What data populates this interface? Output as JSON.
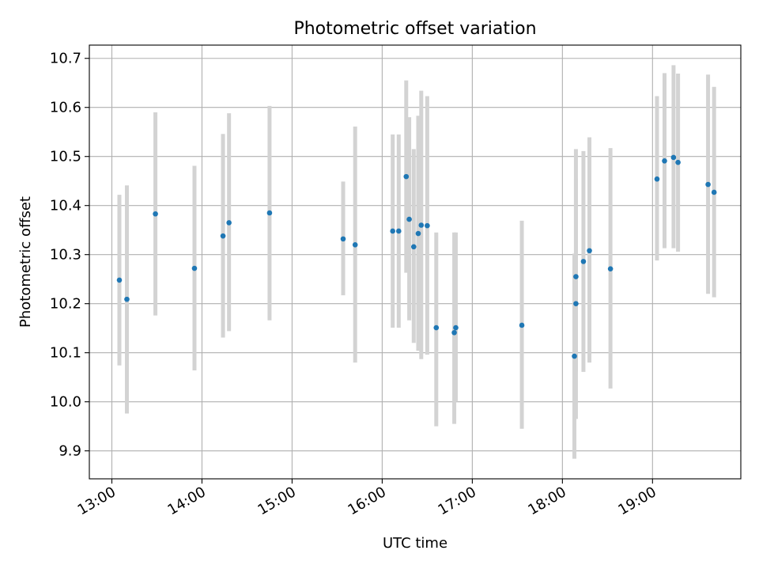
{
  "chart_data": {
    "type": "scatter",
    "title": "Photometric offset variation",
    "xlabel": "UTC time",
    "ylabel": "Photometric offset",
    "x_tick_labels": [
      "13:00",
      "14:00",
      "15:00",
      "16:00",
      "17:00",
      "18:00",
      "19:00"
    ],
    "x_ticks_hours": [
      13,
      14,
      15,
      16,
      17,
      18,
      19
    ],
    "xlim_hours": [
      12.75,
      19.98
    ],
    "y_ticks": [
      9.9,
      10.0,
      10.1,
      10.2,
      10.3,
      10.4,
      10.5,
      10.6,
      10.7
    ],
    "y_tick_labels": [
      "9.9",
      "10.0",
      "10.1",
      "10.2",
      "10.3",
      "10.4",
      "10.5",
      "10.6",
      "10.7"
    ],
    "ylim": [
      9.843,
      10.727
    ],
    "grid": true,
    "colors": {
      "point": "#1f77b4",
      "error_bar": "#d3d3d3",
      "grid": "#b0b0b0"
    },
    "series": [
      {
        "x": [
          "13:05",
          "13:10",
          "13:29",
          "13:55",
          "14:14",
          "14:18",
          "14:45",
          "15:34",
          "15:42",
          "16:07",
          "16:11",
          "16:16",
          "16:18",
          "16:21",
          "16:24",
          "16:26",
          "16:30",
          "16:36",
          "16:48",
          "16:49",
          "17:33",
          "18:08",
          "18:09",
          "18:09",
          "18:14",
          "18:18",
          "18:32",
          "19:03",
          "19:08",
          "19:14",
          "19:17",
          "19:37",
          "19:41"
        ],
        "y": [
          10.248,
          10.209,
          10.383,
          10.272,
          10.338,
          10.365,
          10.385,
          10.332,
          10.32,
          10.348,
          10.348,
          10.459,
          10.372,
          10.316,
          10.343,
          10.36,
          10.359,
          10.151,
          10.141,
          10.151,
          10.156,
          10.093,
          10.2,
          10.255,
          10.286,
          10.308,
          10.271,
          10.454,
          10.491,
          10.498,
          10.488,
          10.443,
          10.427
        ],
        "y_low": [
          10.074,
          9.976,
          10.176,
          10.064,
          10.131,
          10.144,
          10.166,
          10.217,
          10.08,
          10.151,
          10.151,
          10.263,
          10.166,
          10.12,
          10.104,
          10.087,
          10.096,
          9.95,
          9.955,
          10.0,
          9.945,
          9.884,
          9.965,
          10.062,
          10.061,
          10.08,
          10.027,
          10.288,
          10.313,
          10.313,
          10.306,
          10.22,
          10.213
        ],
        "y_high": [
          10.422,
          10.441,
          10.59,
          10.481,
          10.546,
          10.588,
          10.603,
          10.449,
          10.561,
          10.545,
          10.545,
          10.655,
          10.58,
          10.515,
          10.583,
          10.634,
          10.623,
          10.345,
          10.345,
          10.345,
          10.369,
          10.302,
          10.515,
          10.455,
          10.511,
          10.539,
          10.517,
          10.623,
          10.67,
          10.686,
          10.669,
          10.667,
          10.642
        ]
      }
    ]
  }
}
